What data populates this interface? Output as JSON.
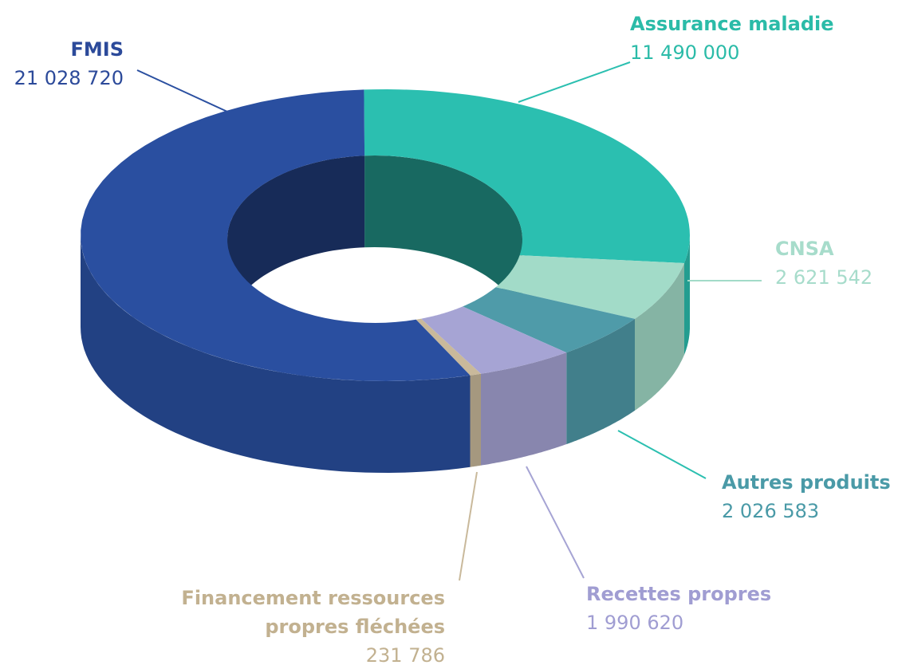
{
  "chart_data": {
    "type": "pie",
    "categories": [
      "Assurance maladie",
      "CNSA",
      "Autres produits",
      "Recettes propres",
      "Financement ressources propres fléchées",
      "FMIS"
    ],
    "values": [
      11490000,
      2621542,
      2026583,
      1990620,
      231786,
      21028720
    ],
    "value_labels": [
      "11 490 000",
      "2 621 542",
      "2 026 583",
      "1 990 620",
      "231 786",
      "21 028 720"
    ],
    "colors": [
      "#2bbfb0",
      "#a2dbc8",
      "#4f9ba9",
      "#a6a4d4",
      "#c9b99b",
      "#2a4fa0"
    ]
  }
}
